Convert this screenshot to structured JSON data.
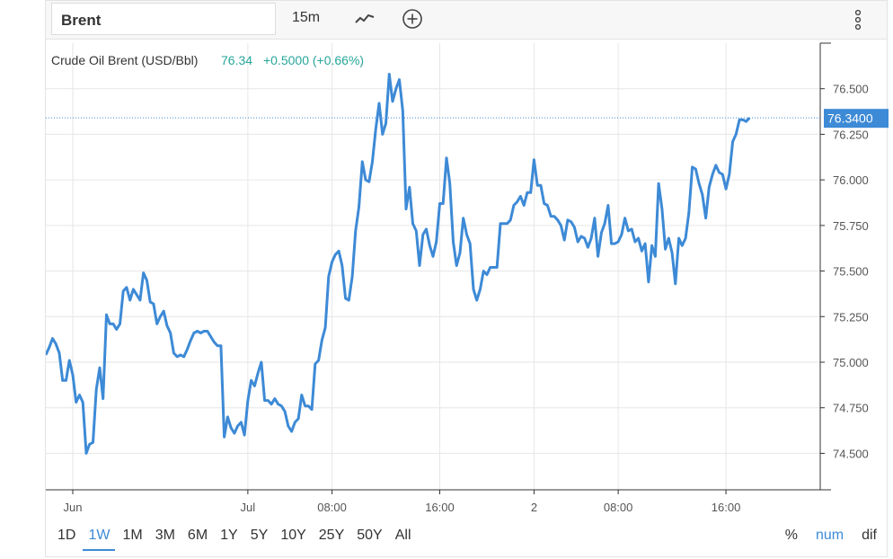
{
  "toolbar": {
    "symbol": "Brent",
    "interval": "15m",
    "chart_type_icon": "line-chart-icon",
    "add_icon": "plus-circle-icon",
    "menu_icon": "vertical-dots-icon"
  },
  "legend": {
    "name": "Crude Oil Brent (USD/Bbl)",
    "last": "76.34",
    "change": "+0.5000 (+0.66%)"
  },
  "price_tag": "76.3400",
  "colors": {
    "line": "#3d8ad6",
    "accent": "#3d8ad6",
    "positive": "#26a69a"
  },
  "ranges": [
    "1D",
    "1W",
    "1M",
    "3M",
    "6M",
    "1Y",
    "5Y",
    "10Y",
    "25Y",
    "50Y",
    "All"
  ],
  "active_range": "1W",
  "scale_modes": [
    "%",
    "num",
    "dif"
  ],
  "active_scale": "num",
  "chart_data": {
    "type": "line",
    "title": "Crude Oil Brent (USD/Bbl)",
    "ylim": [
      74.3,
      76.75
    ],
    "y_ticks": [
      "76.500",
      "76.250",
      "76.000",
      "75.750",
      "75.500",
      "75.250",
      "75.000",
      "74.750",
      "74.500"
    ],
    "x_ticks": [
      {
        "label": "Jun",
        "x": 8
      },
      {
        "label": "Jul",
        "x": 60
      },
      {
        "label": "08:00",
        "x": 85
      },
      {
        "label": "16:00",
        "x": 117
      },
      {
        "label": "2",
        "x": 145
      },
      {
        "label": "08:00",
        "x": 170
      },
      {
        "label": "16:00",
        "x": 202
      }
    ],
    "xlim": [
      0,
      230
    ],
    "last_value": 76.34,
    "grid": true,
    "series": [
      {
        "values": [
          [
            0,
            75.04
          ],
          [
            1,
            75.08
          ],
          [
            2,
            75.13
          ],
          [
            3,
            75.1
          ],
          [
            4,
            75.05
          ],
          [
            5,
            74.9
          ],
          [
            6,
            74.9
          ],
          [
            7,
            75.01
          ],
          [
            8,
            74.93
          ],
          [
            9,
            74.78
          ],
          [
            10,
            74.82
          ],
          [
            11,
            74.78
          ],
          [
            12,
            74.5
          ],
          [
            13,
            74.55
          ],
          [
            14,
            74.56
          ],
          [
            15,
            74.85
          ],
          [
            16,
            74.97
          ],
          [
            17,
            74.8
          ],
          [
            18,
            75.26
          ],
          [
            19,
            75.21
          ],
          [
            20,
            75.21
          ],
          [
            21,
            75.18
          ],
          [
            22,
            75.21
          ],
          [
            23,
            75.39
          ],
          [
            24,
            75.41
          ],
          [
            25,
            75.34
          ],
          [
            26,
            75.4
          ],
          [
            27,
            75.37
          ],
          [
            28,
            75.34
          ],
          [
            29,
            75.49
          ],
          [
            30,
            75.45
          ],
          [
            31,
            75.33
          ],
          [
            32,
            75.32
          ],
          [
            33,
            75.21
          ],
          [
            34,
            75.25
          ],
          [
            35,
            75.28
          ],
          [
            36,
            75.2
          ],
          [
            37,
            75.16
          ],
          [
            38,
            75.05
          ],
          [
            39,
            75.03
          ],
          [
            40,
            75.04
          ],
          [
            41,
            75.03
          ],
          [
            42,
            75.07
          ],
          [
            43,
            75.12
          ],
          [
            44,
            75.16
          ],
          [
            45,
            75.17
          ],
          [
            46,
            75.16
          ],
          [
            47,
            75.17
          ],
          [
            48,
            75.17
          ],
          [
            49,
            75.14
          ],
          [
            50,
            75.11
          ],
          [
            51,
            75.09
          ],
          [
            52,
            75.09
          ],
          [
            53,
            74.59
          ],
          [
            54,
            74.7
          ],
          [
            55,
            74.64
          ],
          [
            56,
            74.61
          ],
          [
            57,
            74.65
          ],
          [
            58,
            74.67
          ],
          [
            59,
            74.6
          ],
          [
            60,
            74.79
          ],
          [
            61,
            74.9
          ],
          [
            62,
            74.87
          ],
          [
            63,
            74.94
          ],
          [
            64,
            75.0
          ],
          [
            65,
            74.79
          ],
          [
            66,
            74.79
          ],
          [
            67,
            74.77
          ],
          [
            68,
            74.8
          ],
          [
            69,
            74.77
          ],
          [
            70,
            74.76
          ],
          [
            71,
            74.73
          ],
          [
            72,
            74.65
          ],
          [
            73,
            74.62
          ],
          [
            74,
            74.67
          ],
          [
            75,
            74.69
          ],
          [
            76,
            74.82
          ],
          [
            77,
            74.76
          ],
          [
            78,
            74.76
          ],
          [
            79,
            74.74
          ],
          [
            80,
            74.99
          ],
          [
            81,
            75.01
          ],
          [
            82,
            75.12
          ],
          [
            83,
            75.19
          ],
          [
            84,
            75.47
          ],
          [
            85,
            75.55
          ],
          [
            86,
            75.59
          ],
          [
            87,
            75.61
          ],
          [
            88,
            75.53
          ],
          [
            89,
            75.35
          ],
          [
            90,
            75.34
          ],
          [
            91,
            75.47
          ],
          [
            92,
            75.72
          ],
          [
            93,
            75.85
          ],
          [
            94,
            76.1
          ],
          [
            95,
            76.0
          ],
          [
            96,
            75.99
          ],
          [
            97,
            76.1
          ],
          [
            98,
            76.28
          ],
          [
            99,
            76.42
          ],
          [
            100,
            76.25
          ],
          [
            101,
            76.31
          ],
          [
            102,
            76.58
          ],
          [
            103,
            76.43
          ],
          [
            104,
            76.5
          ],
          [
            105,
            76.55
          ],
          [
            106,
            76.38
          ],
          [
            107,
            75.84
          ],
          [
            108,
            75.96
          ],
          [
            109,
            75.76
          ],
          [
            110,
            75.72
          ],
          [
            111,
            75.53
          ],
          [
            112,
            75.7
          ],
          [
            113,
            75.73
          ],
          [
            114,
            75.64
          ],
          [
            115,
            75.58
          ],
          [
            116,
            75.66
          ],
          [
            117,
            75.87
          ],
          [
            118,
            75.87
          ],
          [
            119,
            76.12
          ],
          [
            120,
            75.98
          ],
          [
            121,
            75.66
          ],
          [
            122,
            75.53
          ],
          [
            123,
            75.6
          ],
          [
            124,
            75.79
          ],
          [
            125,
            75.7
          ],
          [
            126,
            75.65
          ],
          [
            127,
            75.4
          ],
          [
            128,
            75.34
          ],
          [
            129,
            75.4
          ],
          [
            130,
            75.5
          ],
          [
            131,
            75.48
          ],
          [
            132,
            75.52
          ],
          [
            133,
            75.52
          ],
          [
            134,
            75.52
          ],
          [
            135,
            75.76
          ],
          [
            136,
            75.76
          ],
          [
            137,
            75.76
          ],
          [
            138,
            75.78
          ],
          [
            139,
            75.86
          ],
          [
            140,
            75.88
          ],
          [
            141,
            75.91
          ],
          [
            142,
            75.86
          ],
          [
            143,
            75.93
          ],
          [
            144,
            75.93
          ],
          [
            145,
            76.11
          ],
          [
            146,
            75.97
          ],
          [
            147,
            75.97
          ],
          [
            148,
            75.87
          ],
          [
            149,
            75.86
          ],
          [
            150,
            75.8
          ],
          [
            151,
            75.8
          ],
          [
            152,
            75.78
          ],
          [
            153,
            75.75
          ],
          [
            154,
            75.67
          ],
          [
            155,
            75.78
          ],
          [
            156,
            75.77
          ],
          [
            157,
            75.74
          ],
          [
            158,
            75.66
          ],
          [
            159,
            75.69
          ],
          [
            160,
            75.68
          ],
          [
            161,
            75.63
          ],
          [
            162,
            75.68
          ],
          [
            163,
            75.79
          ],
          [
            164,
            75.58
          ],
          [
            165,
            75.71
          ],
          [
            166,
            75.76
          ],
          [
            167,
            75.86
          ],
          [
            168,
            75.65
          ],
          [
            169,
            75.65
          ],
          [
            170,
            75.66
          ],
          [
            171,
            75.7
          ],
          [
            172,
            75.79
          ],
          [
            173,
            75.72
          ],
          [
            174,
            75.73
          ],
          [
            175,
            75.66
          ],
          [
            176,
            75.68
          ],
          [
            177,
            75.61
          ],
          [
            178,
            75.65
          ],
          [
            179,
            75.44
          ],
          [
            180,
            75.64
          ],
          [
            181,
            75.58
          ],
          [
            182,
            75.98
          ],
          [
            183,
            75.84
          ],
          [
            184,
            75.62
          ],
          [
            185,
            75.68
          ],
          [
            186,
            75.6
          ],
          [
            187,
            75.43
          ],
          [
            188,
            75.68
          ],
          [
            189,
            75.64
          ],
          [
            190,
            75.68
          ],
          [
            191,
            75.82
          ],
          [
            192,
            76.07
          ],
          [
            193,
            76.06
          ],
          [
            194,
            75.98
          ],
          [
            195,
            75.92
          ],
          [
            196,
            75.79
          ],
          [
            197,
            75.96
          ],
          [
            198,
            76.03
          ],
          [
            199,
            76.08
          ],
          [
            200,
            76.04
          ],
          [
            201,
            76.03
          ],
          [
            202,
            75.95
          ],
          [
            203,
            76.03
          ],
          [
            204,
            76.21
          ],
          [
            205,
            76.25
          ],
          [
            206,
            76.33
          ],
          [
            207,
            76.33
          ],
          [
            208,
            76.32
          ],
          [
            209,
            76.34
          ]
        ]
      }
    ]
  }
}
